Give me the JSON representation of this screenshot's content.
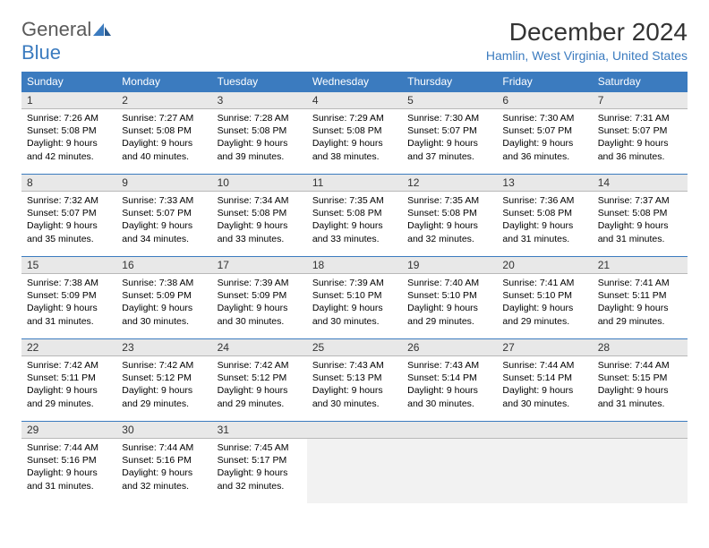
{
  "brand": {
    "part1": "General",
    "part2": "Blue"
  },
  "title": "December 2024",
  "location": "Hamlin, West Virginia, United States",
  "colors": {
    "header_bg": "#3b7bbf",
    "header_fg": "#ffffff",
    "daynum_bg": "#e8e8e8",
    "accent": "#3b7bbf",
    "text": "#000000"
  },
  "day_headers": [
    "Sunday",
    "Monday",
    "Tuesday",
    "Wednesday",
    "Thursday",
    "Friday",
    "Saturday"
  ],
  "weeks": [
    [
      {
        "n": "1",
        "sr": "7:26 AM",
        "ss": "5:08 PM",
        "dl": "9 hours and 42 minutes."
      },
      {
        "n": "2",
        "sr": "7:27 AM",
        "ss": "5:08 PM",
        "dl": "9 hours and 40 minutes."
      },
      {
        "n": "3",
        "sr": "7:28 AM",
        "ss": "5:08 PM",
        "dl": "9 hours and 39 minutes."
      },
      {
        "n": "4",
        "sr": "7:29 AM",
        "ss": "5:08 PM",
        "dl": "9 hours and 38 minutes."
      },
      {
        "n": "5",
        "sr": "7:30 AM",
        "ss": "5:07 PM",
        "dl": "9 hours and 37 minutes."
      },
      {
        "n": "6",
        "sr": "7:30 AM",
        "ss": "5:07 PM",
        "dl": "9 hours and 36 minutes."
      },
      {
        "n": "7",
        "sr": "7:31 AM",
        "ss": "5:07 PM",
        "dl": "9 hours and 36 minutes."
      }
    ],
    [
      {
        "n": "8",
        "sr": "7:32 AM",
        "ss": "5:07 PM",
        "dl": "9 hours and 35 minutes."
      },
      {
        "n": "9",
        "sr": "7:33 AM",
        "ss": "5:07 PM",
        "dl": "9 hours and 34 minutes."
      },
      {
        "n": "10",
        "sr": "7:34 AM",
        "ss": "5:08 PM",
        "dl": "9 hours and 33 minutes."
      },
      {
        "n": "11",
        "sr": "7:35 AM",
        "ss": "5:08 PM",
        "dl": "9 hours and 33 minutes."
      },
      {
        "n": "12",
        "sr": "7:35 AM",
        "ss": "5:08 PM",
        "dl": "9 hours and 32 minutes."
      },
      {
        "n": "13",
        "sr": "7:36 AM",
        "ss": "5:08 PM",
        "dl": "9 hours and 31 minutes."
      },
      {
        "n": "14",
        "sr": "7:37 AM",
        "ss": "5:08 PM",
        "dl": "9 hours and 31 minutes."
      }
    ],
    [
      {
        "n": "15",
        "sr": "7:38 AM",
        "ss": "5:09 PM",
        "dl": "9 hours and 31 minutes."
      },
      {
        "n": "16",
        "sr": "7:38 AM",
        "ss": "5:09 PM",
        "dl": "9 hours and 30 minutes."
      },
      {
        "n": "17",
        "sr": "7:39 AM",
        "ss": "5:09 PM",
        "dl": "9 hours and 30 minutes."
      },
      {
        "n": "18",
        "sr": "7:39 AM",
        "ss": "5:10 PM",
        "dl": "9 hours and 30 minutes."
      },
      {
        "n": "19",
        "sr": "7:40 AM",
        "ss": "5:10 PM",
        "dl": "9 hours and 29 minutes."
      },
      {
        "n": "20",
        "sr": "7:41 AM",
        "ss": "5:10 PM",
        "dl": "9 hours and 29 minutes."
      },
      {
        "n": "21",
        "sr": "7:41 AM",
        "ss": "5:11 PM",
        "dl": "9 hours and 29 minutes."
      }
    ],
    [
      {
        "n": "22",
        "sr": "7:42 AM",
        "ss": "5:11 PM",
        "dl": "9 hours and 29 minutes."
      },
      {
        "n": "23",
        "sr": "7:42 AM",
        "ss": "5:12 PM",
        "dl": "9 hours and 29 minutes."
      },
      {
        "n": "24",
        "sr": "7:42 AM",
        "ss": "5:12 PM",
        "dl": "9 hours and 29 minutes."
      },
      {
        "n": "25",
        "sr": "7:43 AM",
        "ss": "5:13 PM",
        "dl": "9 hours and 30 minutes."
      },
      {
        "n": "26",
        "sr": "7:43 AM",
        "ss": "5:14 PM",
        "dl": "9 hours and 30 minutes."
      },
      {
        "n": "27",
        "sr": "7:44 AM",
        "ss": "5:14 PM",
        "dl": "9 hours and 30 minutes."
      },
      {
        "n": "28",
        "sr": "7:44 AM",
        "ss": "5:15 PM",
        "dl": "9 hours and 31 minutes."
      }
    ],
    [
      {
        "n": "29",
        "sr": "7:44 AM",
        "ss": "5:16 PM",
        "dl": "9 hours and 31 minutes."
      },
      {
        "n": "30",
        "sr": "7:44 AM",
        "ss": "5:16 PM",
        "dl": "9 hours and 32 minutes."
      },
      {
        "n": "31",
        "sr": "7:45 AM",
        "ss": "5:17 PM",
        "dl": "9 hours and 32 minutes."
      },
      null,
      null,
      null,
      null
    ]
  ],
  "labels": {
    "sunrise": "Sunrise:",
    "sunset": "Sunset:",
    "daylight": "Daylight:"
  }
}
